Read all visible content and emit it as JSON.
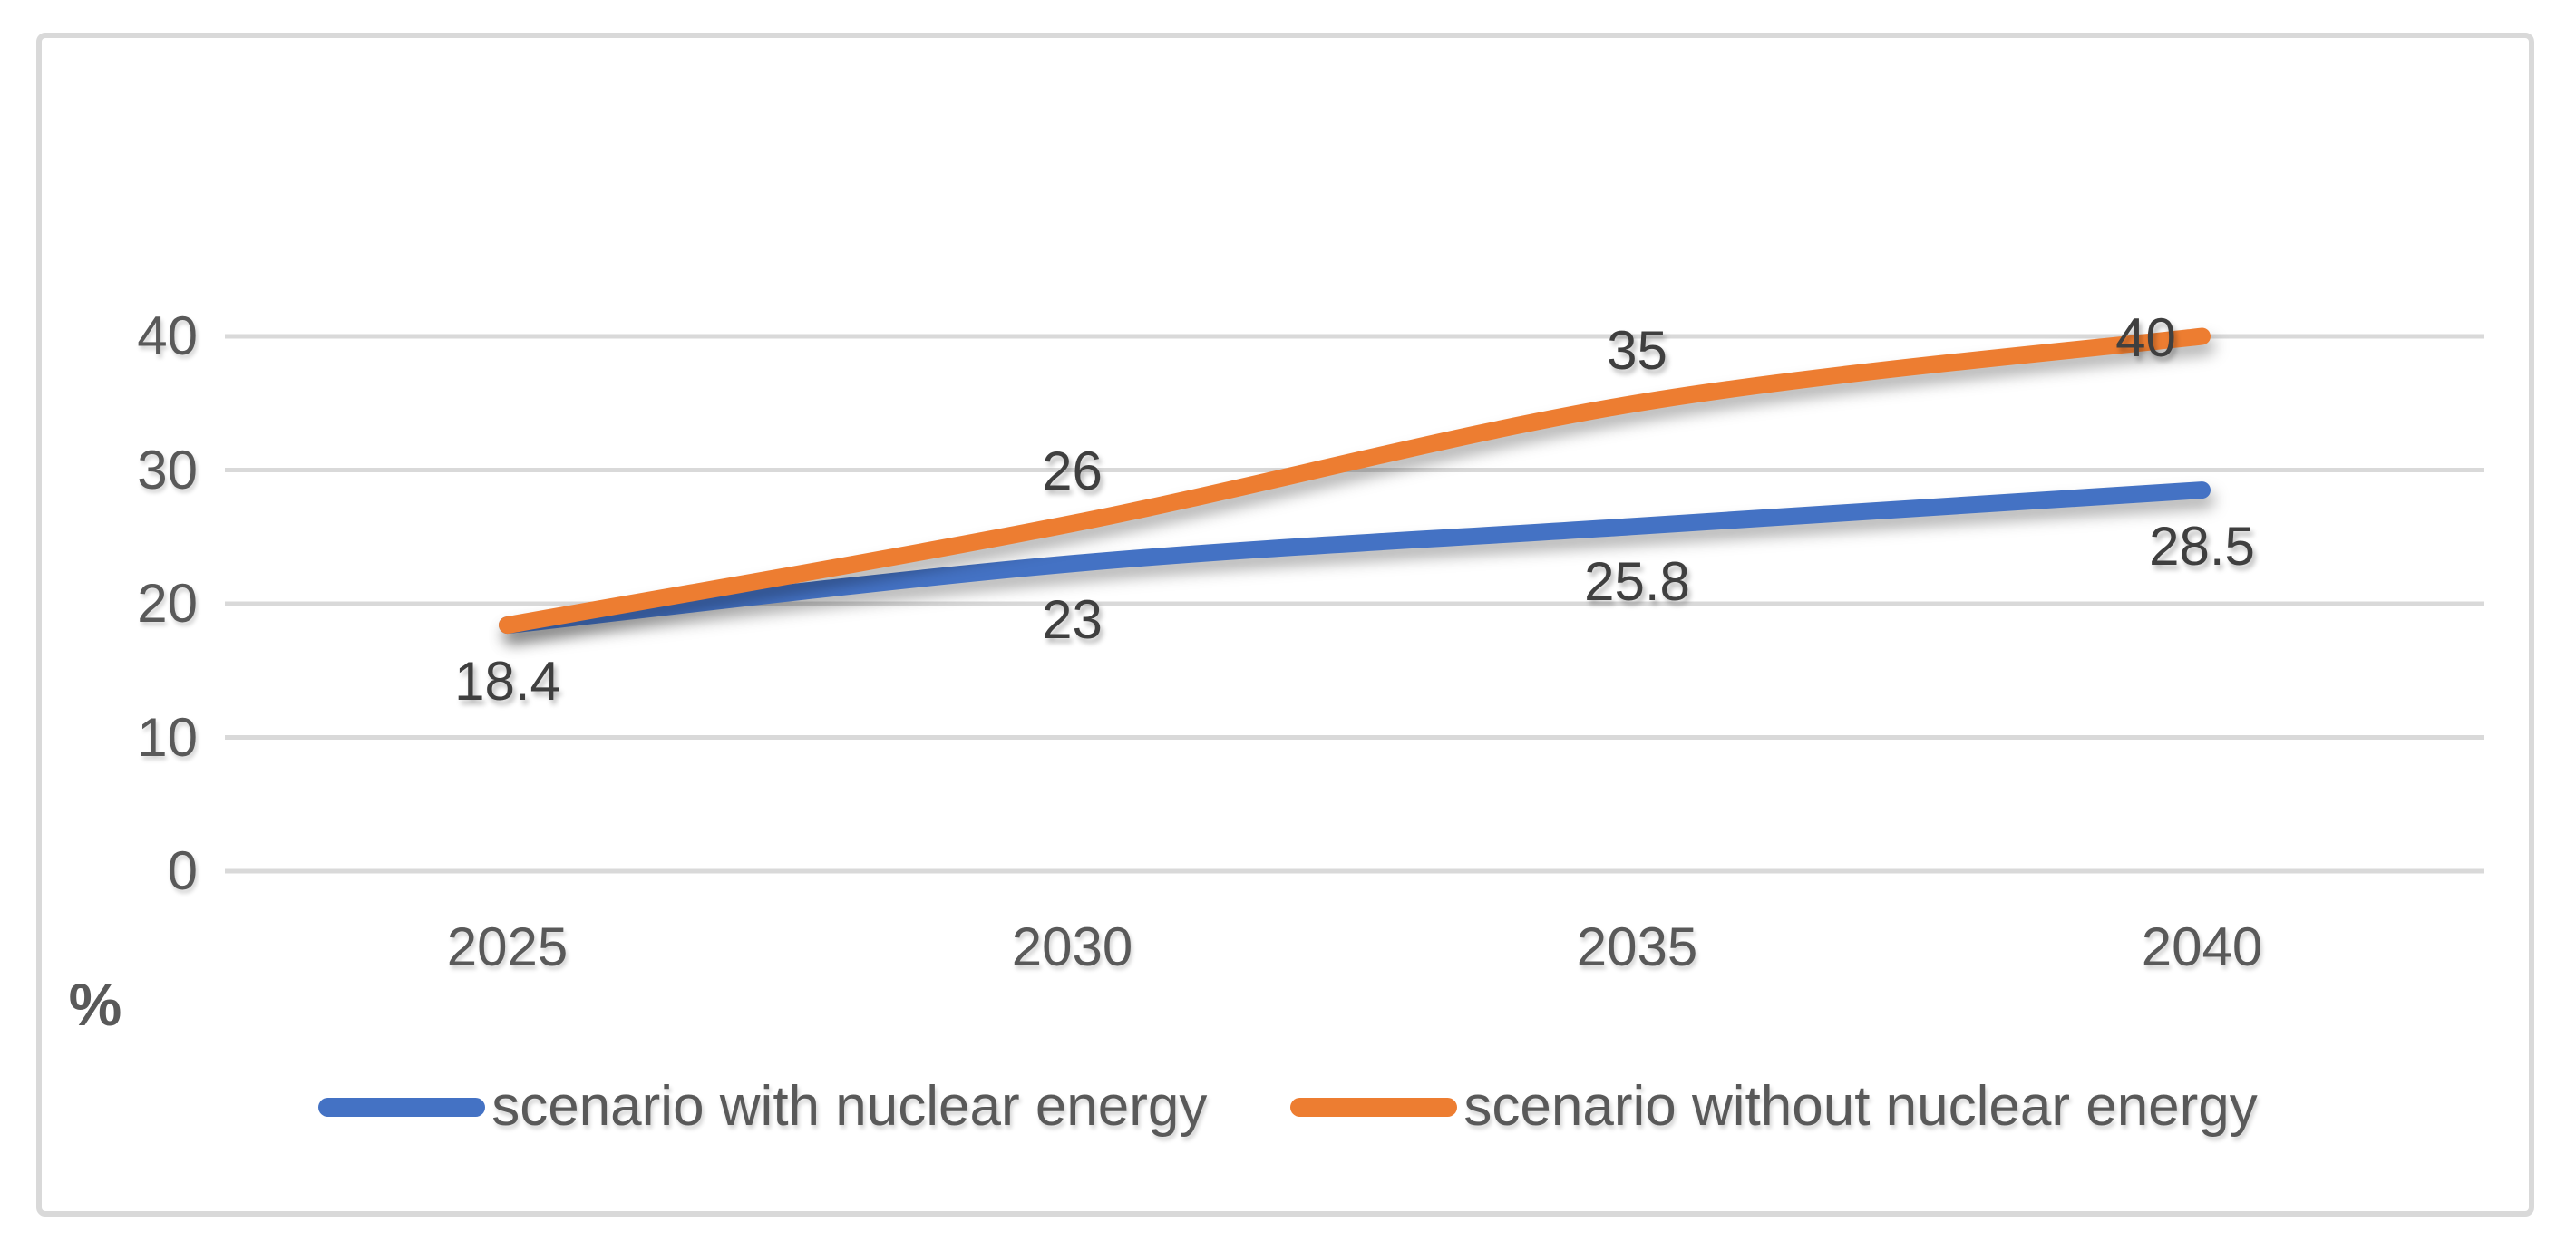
{
  "chart_data": {
    "type": "line",
    "title": "",
    "xlabel": "",
    "ylabel": "%",
    "x_categories": [
      "2025",
      "2030",
      "2035",
      "2040"
    ],
    "yticks": [
      "0",
      "10",
      "20",
      "30",
      "40"
    ],
    "ylim": [
      0,
      40
    ],
    "grid": true,
    "smooth": true,
    "legend_position": "bottom",
    "series": [
      {
        "name": "scenario with nuclear energy",
        "color": "#4472C4",
        "values": [
          18.4,
          23,
          25.8,
          28.5
        ],
        "point_labels": [
          {
            "text": "18.4",
            "placement": "below"
          },
          {
            "text": "23",
            "placement": "below"
          },
          {
            "text": "25.8",
            "placement": "below"
          },
          {
            "text": "28.5",
            "placement": "below"
          }
        ]
      },
      {
        "name": "scenario without nuclear energy",
        "color": "#ED7D31",
        "values": [
          18.4,
          26,
          35,
          40
        ],
        "point_labels": [
          {
            "text": "",
            "placement": "above"
          },
          {
            "text": "26",
            "placement": "above"
          },
          {
            "text": "35",
            "placement": "above"
          },
          {
            "text": "40",
            "placement": "beside-left"
          }
        ]
      }
    ]
  },
  "colors": {
    "gridline": "#D9D9D9",
    "frame_border": "#D9D9D9",
    "tick_label": "#595959",
    "data_label": "#3F3F3F",
    "legend_text": "#595959",
    "background": "#FFFFFF"
  }
}
